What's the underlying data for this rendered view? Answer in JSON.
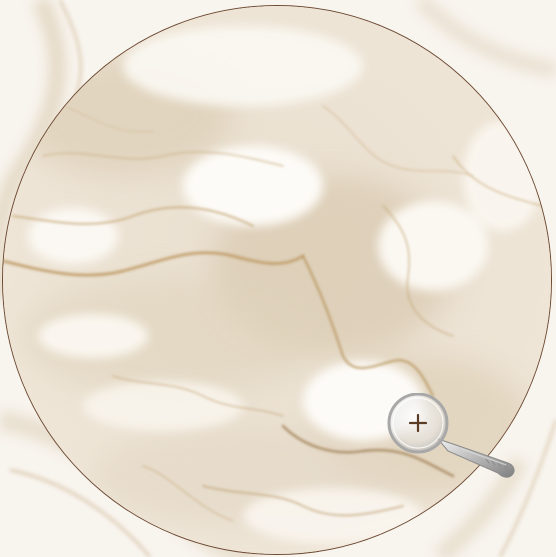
{
  "viewer": {
    "zoom_level_percent": null,
    "icons": {
      "zoom": "magnifier-plus-icon"
    },
    "zoom_symbol": "+"
  },
  "colors": {
    "marble_base": "#f7f3ec",
    "vein_gold": "#c9ad7f",
    "vein_dark": "#a2825a",
    "lens_border": "#6d4a32",
    "handle_silver": "#b8b8b8"
  }
}
